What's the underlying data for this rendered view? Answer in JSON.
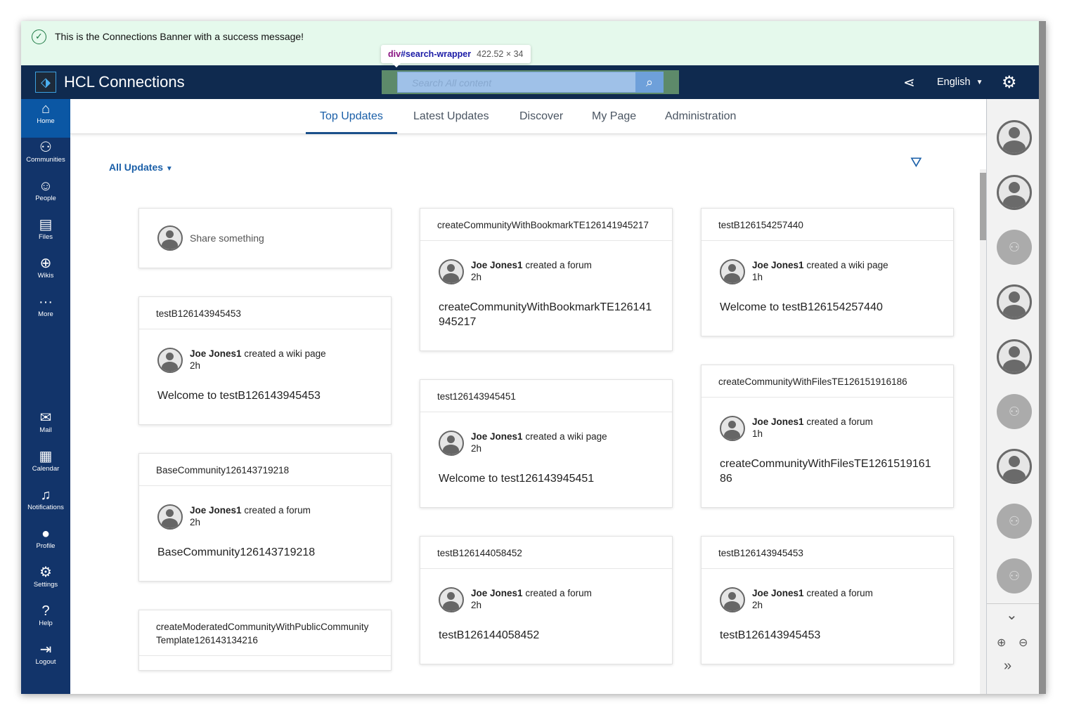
{
  "banner": {
    "message": "This is the Connections Banner with a success message!",
    "icon": "check-circle-icon",
    "color": "#e5f9ec"
  },
  "tooltip": {
    "tag": "div",
    "id": "#search-wrapper",
    "size": "422.52 × 34"
  },
  "header": {
    "brand": "HCL Connections",
    "search_placeholder": "Search All content",
    "language": "English",
    "color": "#0f2a4f"
  },
  "nav": [
    {
      "label": "Home",
      "icon": "home-icon"
    },
    {
      "label": "Communities",
      "icon": "communities-icon"
    },
    {
      "label": "People",
      "icon": "person-icon"
    },
    {
      "label": "Files",
      "icon": "file-icon"
    },
    {
      "label": "Wikis",
      "icon": "globe-icon"
    },
    {
      "label": "More",
      "icon": "more-icon"
    },
    {
      "label": "Mail",
      "icon": "mail-icon"
    },
    {
      "label": "Calendar",
      "icon": "calendar-icon"
    },
    {
      "label": "Notifications",
      "icon": "bell-icon"
    },
    {
      "label": "Profile",
      "icon": "avatar-icon"
    },
    {
      "label": "Settings",
      "icon": "gear-icon"
    },
    {
      "label": "Help",
      "icon": "help-icon"
    },
    {
      "label": "Logout",
      "icon": "logout-icon"
    }
  ],
  "tabs": [
    "Top Updates",
    "Latest Updates",
    "Discover",
    "My Page",
    "Administration"
  ],
  "filter_label": "All Updates",
  "share_placeholder": "Share something",
  "columns": [
    [
      {
        "title": "testB126143945453",
        "actor": "Joe Jones1",
        "action": "created a wiki page",
        "time": "2h",
        "content": "Welcome to testB126143945453"
      },
      {
        "title": "BaseCommunity126143719218",
        "actor": "Joe Jones1",
        "action": "created a forum",
        "time": "2h",
        "content": "BaseCommunity126143719218"
      },
      {
        "title": "createModeratedCommunityWithPublicCommunityTemplate126143134216",
        "actor": "",
        "action": "",
        "time": "",
        "content": ""
      }
    ],
    [
      {
        "title": "createCommunityWithBookmarkTE126141945217",
        "actor": "Joe Jones1",
        "action": "created a forum",
        "time": "2h",
        "content": "createCommunityWithBookmarkTE126141945217"
      },
      {
        "title": "test126143945451",
        "actor": "Joe Jones1",
        "action": "created a wiki page",
        "time": "2h",
        "content": "Welcome to test126143945451"
      },
      {
        "title": "testB126144058452",
        "actor": "Joe Jones1",
        "action": "created a forum",
        "time": "2h",
        "content": "testB126144058452"
      }
    ],
    [
      {
        "title": "testB126154257440",
        "actor": "Joe Jones1",
        "action": "created a wiki page",
        "time": "1h",
        "content": "Welcome to testB126154257440"
      },
      {
        "title": "createCommunityWithFilesTE126151916186",
        "actor": "Joe Jones1",
        "action": "created a forum",
        "time": "1h",
        "content": "createCommunityWithFilesTE126151916186"
      },
      {
        "title": "testB126143945453",
        "actor": "Joe Jones1",
        "action": "created a forum",
        "time": "2h",
        "content": "testB126143945453"
      }
    ]
  ],
  "rail": [
    "person",
    "person",
    "community",
    "person",
    "person",
    "community",
    "person",
    "community",
    "community"
  ]
}
